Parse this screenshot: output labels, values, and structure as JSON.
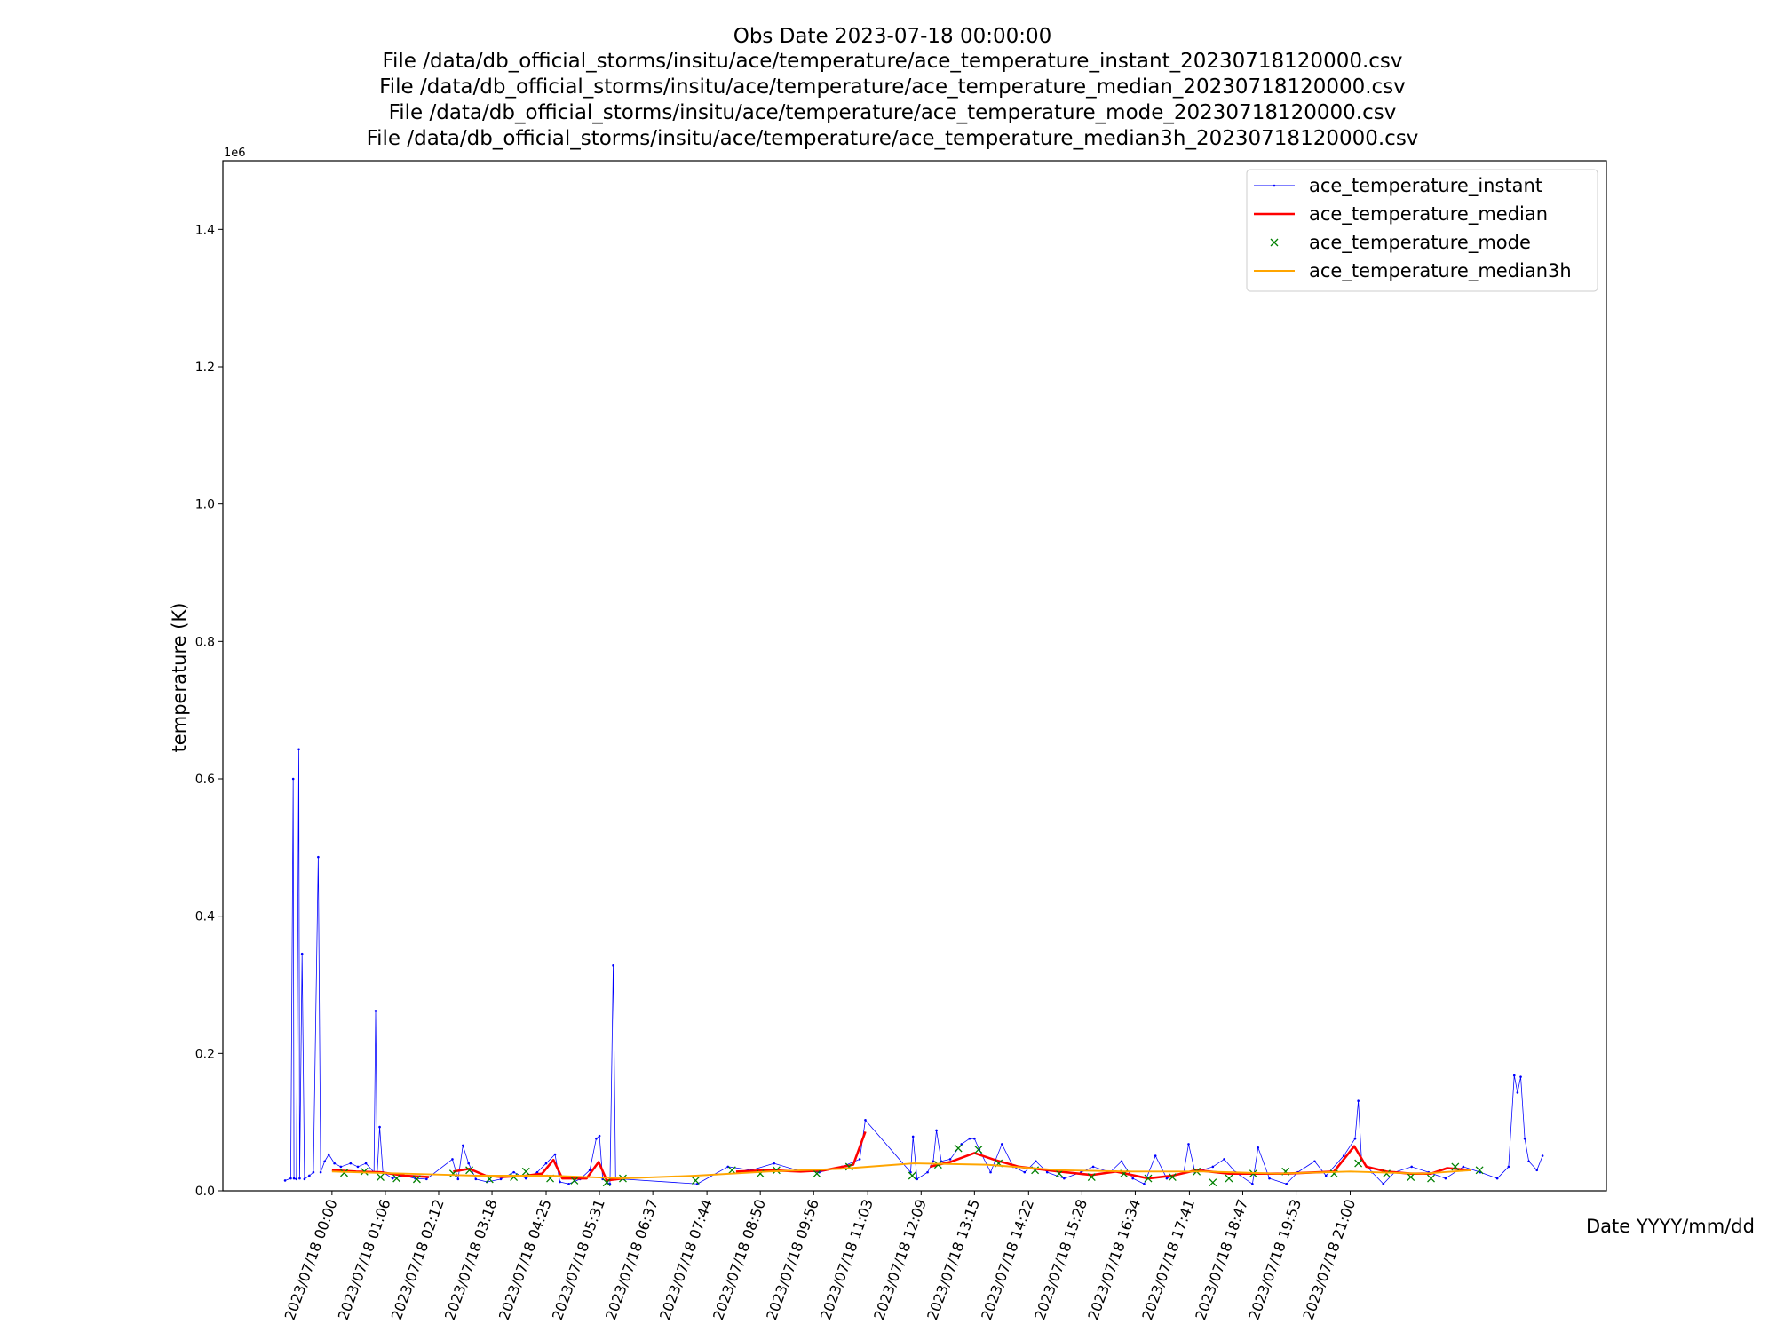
{
  "chart_data": {
    "type": "line",
    "title": [
      "Obs Date 2023-07-18 00:00:00",
      "File /data/db_official_storms/insitu/ace/temperature/ace_temperature_instant_20230718120000.csv",
      "File /data/db_official_storms/insitu/ace/temperature/ace_temperature_median_20230718120000.csv",
      "File /data/db_official_storms/insitu/ace/temperature/ace_temperature_mode_20230718120000.csv",
      "File /data/db_official_storms/insitu/ace/temperature/ace_temperature_median3h_20230718120000.csv"
    ],
    "xlabel": "Date YYYY/mm/dd",
    "ylabel": "temperature (K)",
    "y_offset_text": "1e6",
    "xlim": [
      "2023/07/17 21:45",
      "2023/07/19 02:17"
    ],
    "ylim": [
      0,
      1500000
    ],
    "xticks": [
      "2023/07/18 00:00",
      "2023/07/18 01:06",
      "2023/07/18 02:12",
      "2023/07/18 03:18",
      "2023/07/18 04:25",
      "2023/07/18 05:31",
      "2023/07/18 06:37",
      "2023/07/18 07:44",
      "2023/07/18 08:50",
      "2023/07/18 09:56",
      "2023/07/18 11:03",
      "2023/07/18 12:09",
      "2023/07/18 13:15",
      "2023/07/18 14:22",
      "2023/07/18 15:28",
      "2023/07/18 16:34",
      "2023/07/18 17:41",
      "2023/07/18 18:47",
      "2023/07/18 19:53",
      "2023/07/18 21:00"
    ],
    "yticks": [
      {
        "value": 0,
        "label": "0.0"
      },
      {
        "value": 200000,
        "label": "0.2"
      },
      {
        "value": 400000,
        "label": "0.4"
      },
      {
        "value": 600000,
        "label": "0.6"
      },
      {
        "value": 800000,
        "label": "0.8"
      },
      {
        "value": 1000000,
        "label": "1.0"
      },
      {
        "value": 1200000,
        "label": "1.2"
      },
      {
        "value": 1400000,
        "label": "1.4"
      }
    ],
    "legend": "upper right",
    "series": [
      {
        "name": "ace_temperature_instant",
        "color": "#0000ff",
        "linewidth": 0.6,
        "marker": ".",
        "x": [
          "2023/07/17 23:02",
          "2023/07/17 23:09",
          "2023/07/17 23:12",
          "2023/07/17 23:13",
          "2023/07/17 23:16",
          "2023/07/17 23:19",
          "2023/07/17 23:20",
          "2023/07/17 23:23",
          "2023/07/17 23:26",
          "2023/07/17 23:32",
          "2023/07/17 23:37",
          "2023/07/17 23:43",
          "2023/07/17 23:46",
          "2023/07/17 23:51",
          "2023/07/17 23:56",
          "2023/07/18 00:03",
          "2023/07/18 00:11",
          "2023/07/18 00:23",
          "2023/07/18 00:32",
          "2023/07/18 00:42",
          "2023/07/18 00:52",
          "2023/07/18 00:54",
          "2023/07/18 00:56",
          "2023/07/18 00:59",
          "2023/07/18 01:03",
          "2023/07/18 01:15",
          "2023/07/18 01:29",
          "2023/07/18 01:43",
          "2023/07/18 01:57",
          "2023/07/18 02:29",
          "2023/07/18 02:36",
          "2023/07/18 02:42",
          "2023/07/18 02:49",
          "2023/07/18 02:58",
          "2023/07/18 03:12",
          "2023/07/18 03:29",
          "2023/07/18 03:45",
          "2023/07/18 04:00",
          "2023/07/18 04:14",
          "2023/07/18 04:25",
          "2023/07/18 04:36",
          "2023/07/18 04:42",
          "2023/07/18 04:53",
          "2023/07/18 05:07",
          "2023/07/18 05:19",
          "2023/07/18 05:27",
          "2023/07/18 05:31",
          "2023/07/18 05:35",
          "2023/07/18 05:44",
          "2023/07/18 05:48",
          "2023/07/18 05:51",
          "2023/07/18 06:01",
          "2023/07/18 07:32",
          "2023/07/18 08:10",
          "2023/07/18 08:39",
          "2023/07/18 09:07",
          "2023/07/18 09:35",
          "2023/07/18 10:03",
          "2023/07/18 10:31",
          "2023/07/18 10:53",
          "2023/07/18 11:00",
          "2023/07/18 11:56",
          "2023/07/18 11:59",
          "2023/07/18 12:04",
          "2023/07/18 12:17",
          "2023/07/18 12:24",
          "2023/07/18 12:28",
          "2023/07/18 12:34",
          "2023/07/18 12:45",
          "2023/07/18 12:59",
          "2023/07/18 13:09",
          "2023/07/18 13:15",
          "2023/07/18 13:21",
          "2023/07/18 13:35",
          "2023/07/18 13:49",
          "2023/07/18 14:03",
          "2023/07/18 14:17",
          "2023/07/18 14:31",
          "2023/07/18 14:45",
          "2023/07/18 15:06",
          "2023/07/18 15:27",
          "2023/07/18 15:42",
          "2023/07/18 16:03",
          "2023/07/18 16:17",
          "2023/07/18 16:31",
          "2023/07/18 16:45",
          "2023/07/18 16:59",
          "2023/07/18 17:13",
          "2023/07/18 17:34",
          "2023/07/18 17:40",
          "2023/07/18 17:48",
          "2023/07/18 18:10",
          "2023/07/18 18:24",
          "2023/07/18 18:38",
          "2023/07/18 18:59",
          "2023/07/18 19:06",
          "2023/07/18 19:20",
          "2023/07/18 19:41",
          "2023/07/18 19:55",
          "2023/07/18 20:16",
          "2023/07/18 20:30",
          "2023/07/18 20:52",
          "2023/07/18 21:06",
          "2023/07/18 21:10",
          "2023/07/18 21:14",
          "2023/07/18 21:27",
          "2023/07/18 21:41",
          "2023/07/18 21:55",
          "2023/07/18 22:16",
          "2023/07/18 22:37",
          "2023/07/18 22:58",
          "2023/07/18 23:20",
          "2023/07/18 23:41",
          "2023/07/19 00:02",
          "2023/07/19 00:16",
          "2023/07/19 00:23",
          "2023/07/19 00:27",
          "2023/07/19 00:31",
          "2023/07/19 00:36",
          "2023/07/19 00:41",
          "2023/07/19 00:51",
          "2023/07/19 00:58"
        ],
        "values": [
          15000,
          18000,
          600000,
          18000,
          17000,
          643000,
          18000,
          345000,
          17000,
          22000,
          27000,
          486000,
          27000,
          43000,
          53000,
          40000,
          35000,
          40000,
          35000,
          40000,
          27000,
          262000,
          27000,
          93000,
          27000,
          18000,
          22000,
          18000,
          17000,
          46000,
          17000,
          66000,
          40000,
          17000,
          13000,
          17000,
          27000,
          18000,
          27000,
          40000,
          53000,
          13000,
          10000,
          17000,
          30000,
          76000,
          80000,
          17000,
          10000,
          328000,
          17000,
          17000,
          10000,
          35000,
          30000,
          40000,
          30000,
          27000,
          35000,
          46000,
          103000,
          27000,
          79000,
          17000,
          27000,
          43000,
          88000,
          43000,
          46000,
          68000,
          76000,
          76000,
          60000,
          27000,
          68000,
          35000,
          27000,
          43000,
          27000,
          18000,
          27000,
          35000,
          27000,
          43000,
          18000,
          10000,
          51000,
          18000,
          27000,
          68000,
          27000,
          35000,
          46000,
          27000,
          10000,
          63000,
          18000,
          10000,
          27000,
          43000,
          22000,
          51000,
          76000,
          131000,
          46000,
          27000,
          10000,
          27000,
          35000,
          27000,
          18000,
          35000,
          27000,
          18000,
          35000,
          168000,
          143000,
          166000,
          76000,
          43000,
          30000,
          51000
        ]
      },
      {
        "name": "ace_temperature_median",
        "color": "#ff0000",
        "linewidth": 2,
        "x": [
          "2023/07/18 00:00",
          "2023/07/18 00:30",
          "2023/07/18 01:00",
          "2023/07/18 01:30",
          "2023/07/18 02:00",
          "2023/07/18 02:15",
          "2023/07/18 02:30",
          "2023/07/18 02:50",
          "2023/07/18 03:10",
          "2023/07/18 03:30",
          "2023/07/18 04:00",
          "2023/07/18 04:20",
          "2023/07/18 04:34",
          "2023/07/18 04:45",
          "2023/07/18 05:15",
          "2023/07/18 05:30",
          "2023/07/18 05:40",
          "2023/07/18 06:00",
          "2023/07/18 07:00",
          "2023/07/18 08:20",
          "2023/07/18 09:00",
          "2023/07/18 09:40",
          "2023/07/18 10:10",
          "2023/07/18 10:45",
          "2023/07/18 11:00",
          "2023/07/18 11:30",
          "2023/07/18 12:20",
          "2023/07/18 12:45",
          "2023/07/18 13:15",
          "2023/07/18 13:40",
          "2023/07/18 14:10",
          "2023/07/18 15:00",
          "2023/07/18 15:40",
          "2023/07/18 16:10",
          "2023/07/18 16:50",
          "2023/07/18 17:20",
          "2023/07/18 17:50",
          "2023/07/18 18:30",
          "2023/07/18 19:00",
          "2023/07/18 19:40",
          "2023/07/18 20:40",
          "2023/07/18 21:05",
          "2023/07/18 21:20",
          "2023/07/18 21:45",
          "2023/07/18 22:15",
          "2023/07/18 22:40",
          "2023/07/18 23:00",
          "2023/07/18 23:30"
        ],
        "values": [
          30000,
          28000,
          27000,
          22000,
          20000,
          null,
          28000,
          32000,
          22000,
          20000,
          22000,
          25000,
          45000,
          18000,
          18000,
          42000,
          15000,
          18000,
          null,
          28000,
          30000,
          28000,
          30000,
          38000,
          86000,
          null,
          35000,
          42000,
          55000,
          45000,
          35000,
          28000,
          23000,
          28000,
          18000,
          22000,
          30000,
          25000,
          25000,
          25000,
          28000,
          65000,
          35000,
          28000,
          25000,
          25000,
          33000,
          30000
        ]
      },
      {
        "name": "ace_temperature_mode",
        "color": "#008000",
        "linewidth": 0,
        "marker": "x",
        "x": [
          "2023/07/18 00:15",
          "2023/07/18 00:40",
          "2023/07/18 01:00",
          "2023/07/18 01:20",
          "2023/07/18 01:45",
          "2023/07/18 02:30",
          "2023/07/18 02:50",
          "2023/07/18 03:15",
          "2023/07/18 03:45",
          "2023/07/18 04:00",
          "2023/07/18 04:30",
          "2023/07/18 05:00",
          "2023/07/18 05:40",
          "2023/07/18 06:00",
          "2023/07/18 07:30",
          "2023/07/18 08:15",
          "2023/07/18 08:50",
          "2023/07/18 09:10",
          "2023/07/18 10:00",
          "2023/07/18 10:40",
          "2023/07/18 11:58",
          "2023/07/18 12:30",
          "2023/07/18 12:55",
          "2023/07/18 13:20",
          "2023/07/18 13:45",
          "2023/07/18 14:30",
          "2023/07/18 15:00",
          "2023/07/18 15:40",
          "2023/07/18 16:20",
          "2023/07/18 16:50",
          "2023/07/18 17:20",
          "2023/07/18 17:50",
          "2023/07/18 18:10",
          "2023/07/18 18:30",
          "2023/07/18 19:00",
          "2023/07/18 19:40",
          "2023/07/18 20:40",
          "2023/07/18 21:10",
          "2023/07/18 21:45",
          "2023/07/18 22:15",
          "2023/07/18 22:40",
          "2023/07/18 23:10",
          "2023/07/18 23:40"
        ],
        "values": [
          26000,
          28000,
          20000,
          18000,
          17000,
          25000,
          30000,
          17000,
          20000,
          28000,
          18000,
          15000,
          12000,
          18000,
          15000,
          30000,
          25000,
          30000,
          25000,
          35000,
          22000,
          38000,
          62000,
          60000,
          40000,
          30000,
          25000,
          20000,
          25000,
          18000,
          20000,
          28000,
          12000,
          18000,
          25000,
          28000,
          25000,
          40000,
          25000,
          20000,
          18000,
          35000,
          30000
        ]
      },
      {
        "name": "ace_temperature_median3h",
        "color": "#ffa500",
        "linewidth": 1.5,
        "x": [
          "2023/07/18 00:00",
          "2023/07/18 01:30",
          "2023/07/18 03:00",
          "2023/07/18 04:30",
          "2023/07/18 06:00",
          "2023/07/18 07:30",
          "2023/07/18 09:00",
          "2023/07/18 10:30",
          "2023/07/18 12:00",
          "2023/07/18 13:30",
          "2023/07/18 15:00",
          "2023/07/18 16:30",
          "2023/07/18 18:00",
          "2023/07/18 19:30",
          "2023/07/18 21:00",
          "2023/07/18 22:30",
          "2023/07/18 23:30"
        ],
        "values": [
          28000,
          25000,
          22000,
          22000,
          18000,
          22000,
          28000,
          32000,
          40000,
          38000,
          30000,
          28000,
          28000,
          25000,
          28000,
          25000,
          30000
        ]
      }
    ]
  }
}
